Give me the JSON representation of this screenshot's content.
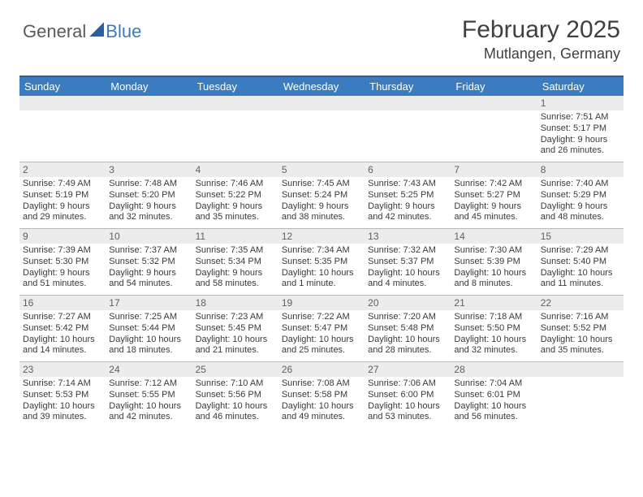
{
  "logo": {
    "general": "General",
    "blue": "Blue"
  },
  "title": "February 2025",
  "location": "Mutlangen, Germany",
  "day_labels": [
    "Sunday",
    "Monday",
    "Tuesday",
    "Wednesday",
    "Thursday",
    "Friday",
    "Saturday"
  ],
  "colors": {
    "header_bg": "#3b7bbf",
    "header_border": "#2b5f9e",
    "daynum_bg": "#ececec",
    "week_rule": "#b8b8b8",
    "logo_dark": "#5a5a5a",
    "logo_blue": "#3b7bbf",
    "sail": "#2b5f9e"
  },
  "weeks": [
    {
      "nums": [
        "",
        "",
        "",
        "",
        "",
        "",
        "1"
      ],
      "cells": [
        null,
        null,
        null,
        null,
        null,
        null,
        {
          "sunrise": "Sunrise: 7:51 AM",
          "sunset": "Sunset: 5:17 PM",
          "daylight": "Daylight: 9 hours and 26 minutes."
        }
      ]
    },
    {
      "nums": [
        "2",
        "3",
        "4",
        "5",
        "6",
        "7",
        "8"
      ],
      "cells": [
        {
          "sunrise": "Sunrise: 7:49 AM",
          "sunset": "Sunset: 5:19 PM",
          "daylight": "Daylight: 9 hours and 29 minutes."
        },
        {
          "sunrise": "Sunrise: 7:48 AM",
          "sunset": "Sunset: 5:20 PM",
          "daylight": "Daylight: 9 hours and 32 minutes."
        },
        {
          "sunrise": "Sunrise: 7:46 AM",
          "sunset": "Sunset: 5:22 PM",
          "daylight": "Daylight: 9 hours and 35 minutes."
        },
        {
          "sunrise": "Sunrise: 7:45 AM",
          "sunset": "Sunset: 5:24 PM",
          "daylight": "Daylight: 9 hours and 38 minutes."
        },
        {
          "sunrise": "Sunrise: 7:43 AM",
          "sunset": "Sunset: 5:25 PM",
          "daylight": "Daylight: 9 hours and 42 minutes."
        },
        {
          "sunrise": "Sunrise: 7:42 AM",
          "sunset": "Sunset: 5:27 PM",
          "daylight": "Daylight: 9 hours and 45 minutes."
        },
        {
          "sunrise": "Sunrise: 7:40 AM",
          "sunset": "Sunset: 5:29 PM",
          "daylight": "Daylight: 9 hours and 48 minutes."
        }
      ]
    },
    {
      "nums": [
        "9",
        "10",
        "11",
        "12",
        "13",
        "14",
        "15"
      ],
      "cells": [
        {
          "sunrise": "Sunrise: 7:39 AM",
          "sunset": "Sunset: 5:30 PM",
          "daylight": "Daylight: 9 hours and 51 minutes."
        },
        {
          "sunrise": "Sunrise: 7:37 AM",
          "sunset": "Sunset: 5:32 PM",
          "daylight": "Daylight: 9 hours and 54 minutes."
        },
        {
          "sunrise": "Sunrise: 7:35 AM",
          "sunset": "Sunset: 5:34 PM",
          "daylight": "Daylight: 9 hours and 58 minutes."
        },
        {
          "sunrise": "Sunrise: 7:34 AM",
          "sunset": "Sunset: 5:35 PM",
          "daylight": "Daylight: 10 hours and 1 minute."
        },
        {
          "sunrise": "Sunrise: 7:32 AM",
          "sunset": "Sunset: 5:37 PM",
          "daylight": "Daylight: 10 hours and 4 minutes."
        },
        {
          "sunrise": "Sunrise: 7:30 AM",
          "sunset": "Sunset: 5:39 PM",
          "daylight": "Daylight: 10 hours and 8 minutes."
        },
        {
          "sunrise": "Sunrise: 7:29 AM",
          "sunset": "Sunset: 5:40 PM",
          "daylight": "Daylight: 10 hours and 11 minutes."
        }
      ]
    },
    {
      "nums": [
        "16",
        "17",
        "18",
        "19",
        "20",
        "21",
        "22"
      ],
      "cells": [
        {
          "sunrise": "Sunrise: 7:27 AM",
          "sunset": "Sunset: 5:42 PM",
          "daylight": "Daylight: 10 hours and 14 minutes."
        },
        {
          "sunrise": "Sunrise: 7:25 AM",
          "sunset": "Sunset: 5:44 PM",
          "daylight": "Daylight: 10 hours and 18 minutes."
        },
        {
          "sunrise": "Sunrise: 7:23 AM",
          "sunset": "Sunset: 5:45 PM",
          "daylight": "Daylight: 10 hours and 21 minutes."
        },
        {
          "sunrise": "Sunrise: 7:22 AM",
          "sunset": "Sunset: 5:47 PM",
          "daylight": "Daylight: 10 hours and 25 minutes."
        },
        {
          "sunrise": "Sunrise: 7:20 AM",
          "sunset": "Sunset: 5:48 PM",
          "daylight": "Daylight: 10 hours and 28 minutes."
        },
        {
          "sunrise": "Sunrise: 7:18 AM",
          "sunset": "Sunset: 5:50 PM",
          "daylight": "Daylight: 10 hours and 32 minutes."
        },
        {
          "sunrise": "Sunrise: 7:16 AM",
          "sunset": "Sunset: 5:52 PM",
          "daylight": "Daylight: 10 hours and 35 minutes."
        }
      ]
    },
    {
      "nums": [
        "23",
        "24",
        "25",
        "26",
        "27",
        "28",
        ""
      ],
      "cells": [
        {
          "sunrise": "Sunrise: 7:14 AM",
          "sunset": "Sunset: 5:53 PM",
          "daylight": "Daylight: 10 hours and 39 minutes."
        },
        {
          "sunrise": "Sunrise: 7:12 AM",
          "sunset": "Sunset: 5:55 PM",
          "daylight": "Daylight: 10 hours and 42 minutes."
        },
        {
          "sunrise": "Sunrise: 7:10 AM",
          "sunset": "Sunset: 5:56 PM",
          "daylight": "Daylight: 10 hours and 46 minutes."
        },
        {
          "sunrise": "Sunrise: 7:08 AM",
          "sunset": "Sunset: 5:58 PM",
          "daylight": "Daylight: 10 hours and 49 minutes."
        },
        {
          "sunrise": "Sunrise: 7:06 AM",
          "sunset": "Sunset: 6:00 PM",
          "daylight": "Daylight: 10 hours and 53 minutes."
        },
        {
          "sunrise": "Sunrise: 7:04 AM",
          "sunset": "Sunset: 6:01 PM",
          "daylight": "Daylight: 10 hours and 56 minutes."
        },
        null
      ]
    }
  ]
}
